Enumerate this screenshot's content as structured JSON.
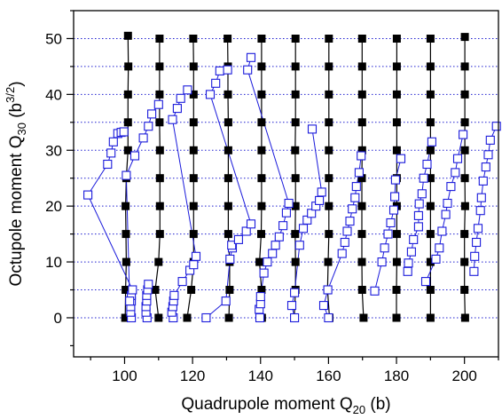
{
  "chart_data": {
    "type": "scatter",
    "title": "",
    "xlabel": "Quadrupole moment Q",
    "xlabel_sub": "20",
    "xlabel_unit": " (b)",
    "ylabel": "Octupole moment Q",
    "ylabel_sub": "30",
    "ylabel_unit_open": " (b",
    "ylabel_unit_sup": "3/2",
    "ylabel_unit_close": ")",
    "xlim": [
      85,
      210
    ],
    "ylim": [
      -7,
      55
    ],
    "xticks": [
      100,
      120,
      140,
      160,
      180,
      200
    ],
    "yticks": [
      0,
      10,
      20,
      30,
      40,
      50
    ],
    "grid": "horizontal dotted lines every 5 units",
    "grid_lines_y": [
      0,
      5,
      10,
      15,
      20,
      25,
      30,
      35,
      40,
      45,
      50
    ],
    "colors": {
      "black_series": "#000000",
      "blue_series": "#1a1adb",
      "grid": "#2020d0"
    },
    "series": [
      {
        "marker": "filled-square",
        "color": "#000000",
        "lines": [
          [
            [
              100.2,
              0
            ],
            [
              100.3,
              5
            ],
            [
              100.5,
              10
            ],
            [
              100.4,
              15
            ],
            [
              100.3,
              20
            ],
            [
              100.5,
              25
            ],
            [
              101,
              30
            ],
            [
              101,
              35
            ],
            [
              101,
              40
            ],
            [
              101.1,
              45
            ],
            [
              101,
              50.5
            ]
          ],
          [
            [
              110,
              0
            ],
            [
              109,
              5
            ],
            [
              110,
              10
            ],
            [
              110.4,
              15
            ],
            [
              110.4,
              20
            ],
            [
              110.4,
              25
            ],
            [
              110.4,
              30
            ],
            [
              110.3,
              35
            ],
            [
              110.3,
              40
            ],
            [
              110.3,
              45
            ],
            [
              110.3,
              50
            ]
          ],
          [
            [
              118.4,
              0
            ],
            [
              119.6,
              5
            ],
            [
              120.3,
              10
            ],
            [
              120.3,
              15
            ],
            [
              120.3,
              20
            ],
            [
              120.3,
              25
            ],
            [
              120.3,
              30
            ],
            [
              120.3,
              35
            ],
            [
              120.3,
              40
            ],
            [
              120.3,
              45
            ],
            [
              120.2,
              50
            ]
          ],
          [
            [
              130.7,
              0
            ],
            [
              130.9,
              5
            ],
            [
              130.9,
              10
            ],
            [
              130.5,
              15
            ],
            [
              130.5,
              20
            ],
            [
              130.5,
              25
            ],
            [
              130.5,
              30
            ],
            [
              130.5,
              35
            ],
            [
              130.4,
              40
            ],
            [
              130.4,
              45
            ],
            [
              130.3,
              50
            ]
          ],
          [
            [
              140.4,
              0
            ],
            [
              140.3,
              5
            ],
            [
              139.7,
              10
            ],
            [
              140.2,
              15
            ],
            [
              140.3,
              20
            ],
            [
              140.3,
              25
            ],
            [
              140.3,
              30
            ],
            [
              140.3,
              35
            ],
            [
              140.3,
              40
            ],
            [
              140.3,
              45
            ],
            [
              140.3,
              50
            ]
          ],
          [
            [
              149.9,
              0
            ],
            [
              150.3,
              5
            ],
            [
              150.3,
              10
            ],
            [
              150.2,
              15
            ],
            [
              150.3,
              20
            ],
            [
              150.3,
              25
            ],
            [
              150.2,
              30
            ],
            [
              150.3,
              35
            ],
            [
              150.3,
              40
            ],
            [
              150.3,
              45
            ],
            [
              150.3,
              50
            ]
          ],
          [
            [
              160.3,
              0
            ],
            [
              159.7,
              5
            ],
            [
              159.9,
              10
            ],
            [
              160.1,
              15
            ],
            [
              160.1,
              20
            ],
            [
              160.1,
              25
            ],
            [
              160.1,
              30
            ],
            [
              160.1,
              35
            ],
            [
              160.1,
              40
            ],
            [
              160.1,
              45
            ],
            [
              160.1,
              50
            ]
          ],
          [
            [
              170.3,
              0
            ],
            [
              169.9,
              5
            ],
            [
              169.8,
              10
            ],
            [
              169.8,
              15
            ],
            [
              169.8,
              20
            ],
            [
              169.8,
              25
            ],
            [
              169.9,
              30
            ],
            [
              169.9,
              35
            ],
            [
              169.9,
              40
            ],
            [
              169.9,
              45
            ],
            [
              169.9,
              50
            ]
          ],
          [
            [
              180,
              0
            ],
            [
              180,
              5
            ],
            [
              180.1,
              10
            ],
            [
              180.1,
              15
            ],
            [
              180.1,
              20
            ],
            [
              180.1,
              25
            ],
            [
              180.1,
              30
            ],
            [
              180.1,
              35
            ],
            [
              180.1,
              40
            ],
            [
              180.1,
              45
            ],
            [
              180.1,
              50
            ]
          ],
          [
            [
              190,
              0
            ],
            [
              190,
              5
            ],
            [
              190,
              10
            ],
            [
              190,
              15
            ],
            [
              190,
              20
            ],
            [
              190,
              25
            ],
            [
              190,
              30
            ],
            [
              190,
              35
            ],
            [
              190,
              40
            ],
            [
              190,
              45
            ],
            [
              190,
              50
            ]
          ],
          [
            [
              200.2,
              0
            ],
            [
              200,
              5
            ],
            [
              200,
              10
            ],
            [
              200,
              15
            ],
            [
              200.2,
              20
            ],
            [
              200.1,
              25
            ],
            [
              200.1,
              30
            ],
            [
              200.1,
              35
            ],
            [
              200.1,
              40
            ],
            [
              200.1,
              45
            ],
            [
              200.1,
              50.3
            ]
          ]
        ]
      },
      {
        "marker": "open-square",
        "color": "#1a1adb",
        "lines": [
          [
            [
              102,
              0
            ],
            [
              101.8,
              1
            ],
            [
              101.8,
              2
            ],
            [
              102,
              3
            ],
            [
              102,
              4
            ],
            [
              102.3,
              5
            ],
            [
              89.2,
              22
            ],
            [
              95,
              27.5
            ],
            [
              96,
              29.5
            ],
            [
              96.7,
              31.5
            ],
            [
              98,
              33
            ],
            [
              99,
              33.2
            ],
            [
              99.8,
              33.3
            ]
          ],
          [
            [
              101.5,
              3
            ],
            [
              100.5,
              25.5
            ],
            [
              103,
              29
            ],
            [
              105.5,
              32.2
            ],
            [
              107,
              34.3
            ],
            [
              108,
              36.5
            ],
            [
              110,
              38.2
            ]
          ],
          [
            [
              106.6,
              0
            ],
            [
              106.3,
              1
            ],
            [
              106.3,
              2
            ],
            [
              106.5,
              3
            ],
            [
              106.5,
              4
            ],
            [
              106.8,
              5
            ],
            [
              107,
              6
            ]
          ],
          [
            [
              114.3,
              0
            ],
            [
              113.9,
              1
            ],
            [
              114.2,
              2
            ],
            [
              114.4,
              3
            ],
            [
              114.6,
              4
            ],
            [
              117,
              6.5
            ],
            [
              119.2,
              8.5
            ],
            [
              120.3,
              9.5
            ],
            [
              121,
              11
            ],
            [
              114.1,
              35.5
            ],
            [
              115.5,
              37.5
            ],
            [
              116.5,
              39.3
            ],
            [
              118.5,
              40.8
            ]
          ],
          [
            [
              124,
              0
            ],
            [
              129.8,
              3
            ],
            [
              131,
              10.5
            ],
            [
              131.7,
              12.5
            ],
            [
              131.5,
              13
            ],
            [
              133.5,
              14
            ],
            [
              135.8,
              15.5
            ],
            [
              137.2,
              16.8
            ],
            [
              125.2,
              40
            ],
            [
              126.8,
              42
            ],
            [
              128,
              44.2
            ],
            [
              130.3,
              44.4
            ]
          ],
          [
            [
              139.8,
              0
            ],
            [
              139.6,
              1.5
            ],
            [
              140,
              2.5
            ],
            [
              140,
              3.8
            ],
            [
              141,
              8
            ],
            [
              142,
              10
            ],
            [
              143.5,
              11.5
            ],
            [
              144.4,
              13
            ],
            [
              145.5,
              14.5
            ],
            [
              146.6,
              16.5
            ],
            [
              147.6,
              18.8
            ],
            [
              148.3,
              20.5
            ],
            [
              136.2,
              44.4
            ],
            [
              137.2,
              46.6
            ]
          ],
          [
            [
              150,
              0
            ],
            [
              149.2,
              2.2
            ],
            [
              150,
              4.5
            ],
            [
              151.5,
              13
            ],
            [
              152.6,
              16
            ],
            [
              153.7,
              17.5
            ],
            [
              155,
              18.7
            ],
            [
              156.3,
              20
            ],
            [
              157.3,
              21
            ],
            [
              158,
              22.5
            ],
            [
              155.2,
              33.8
            ]
          ],
          [
            [
              160,
              0
            ],
            [
              158.6,
              2.2
            ],
            [
              159.8,
              5
            ],
            [
              164,
              11.5
            ],
            [
              164.8,
              13.5
            ],
            [
              165.5,
              15.5
            ],
            [
              166.3,
              17.3
            ],
            [
              167,
              19.5
            ],
            [
              167.8,
              21.5
            ],
            [
              168.2,
              23.5
            ],
            [
              169,
              26
            ],
            [
              169.6,
              29
            ]
          ],
          [
            [
              173.6,
              4.8
            ],
            [
              175.7,
              10
            ],
            [
              176.5,
              12.5
            ],
            [
              177.5,
              15
            ],
            [
              178.3,
              17
            ],
            [
              179.2,
              19.3
            ],
            [
              179.5,
              21.7
            ],
            [
              179.7,
              24.7
            ],
            [
              181.3,
              28.5
            ]
          ],
          [
            [
              183.3,
              8.3
            ],
            [
              183.5,
              9.8
            ],
            [
              184.4,
              11.8
            ],
            [
              185,
              14
            ],
            [
              186.5,
              16.3
            ],
            [
              186.5,
              18.3
            ],
            [
              186.7,
              20.4
            ],
            [
              187.5,
              22.2
            ],
            [
              188,
              25
            ],
            [
              189,
              27.5
            ],
            [
              190.4,
              31.5
            ]
          ],
          [
            [
              188.6,
              6.5
            ],
            [
              191.6,
              10.5
            ],
            [
              192.6,
              12.5
            ],
            [
              193.4,
              15.5
            ],
            [
              194.5,
              18.5
            ],
            [
              195,
              20.5
            ],
            [
              196,
              23.5
            ],
            [
              197.3,
              26
            ],
            [
              198,
              28.5
            ],
            [
              199.6,
              32.8
            ]
          ],
          [
            [
              202.8,
              8.3
            ],
            [
              203,
              11
            ],
            [
              203.5,
              13.5
            ],
            [
              204,
              16
            ],
            [
              204.7,
              19.2
            ],
            [
              205,
              21.5
            ],
            [
              205.5,
              24.5
            ],
            [
              206.3,
              27
            ],
            [
              207,
              29.2
            ],
            [
              207.6,
              31.8
            ],
            [
              209.4,
              34.3
            ]
          ]
        ]
      }
    ]
  }
}
